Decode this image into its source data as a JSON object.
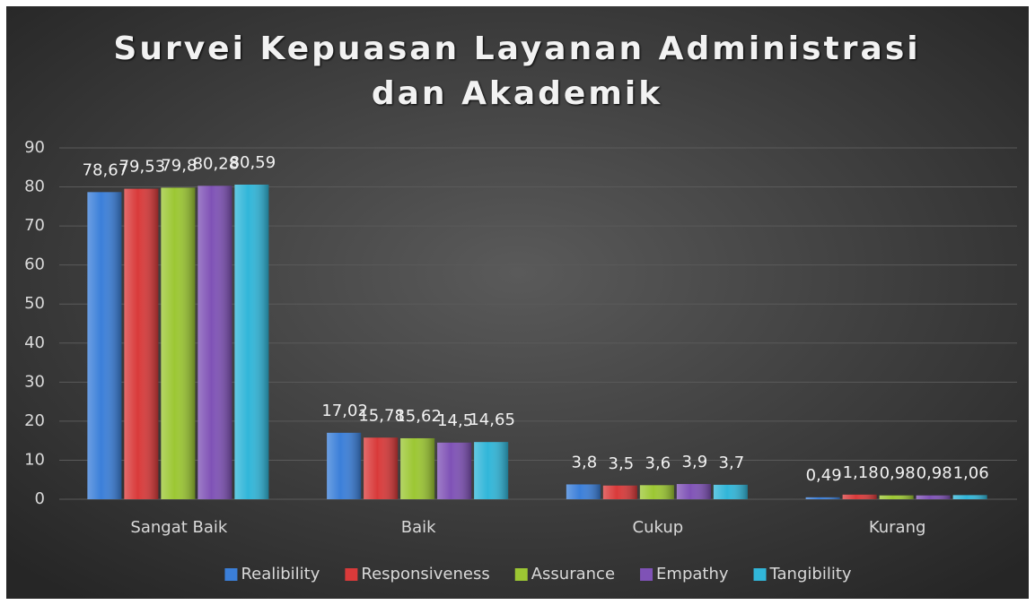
{
  "chart_data": {
    "type": "bar",
    "title": "Survei Kepuasan Layanan Administrasi dan Akademik",
    "categories": [
      "Sangat Baik",
      "Baik",
      "Cukup",
      "Kurang"
    ],
    "series": [
      {
        "name": "Realibility",
        "color": "#3b7fd9",
        "values": [
          78.67,
          17.02,
          3.8,
          0.49
        ],
        "value_labels": [
          "78,67",
          "17,02",
          "3,8",
          "0,49"
        ]
      },
      {
        "name": "Responsiveness",
        "color": "#d93a3a",
        "values": [
          79.53,
          15.78,
          3.5,
          1.18
        ],
        "value_labels": [
          "79,53",
          "15,78",
          "3,5",
          "1,18"
        ]
      },
      {
        "name": "Assurance",
        "color": "#9cc733",
        "values": [
          79.8,
          15.62,
          3.6,
          0.98
        ],
        "value_labels": [
          "79,8",
          "15,62",
          "3,6",
          "0,98"
        ]
      },
      {
        "name": "Empathy",
        "color": "#7f52b6",
        "values": [
          80.28,
          14.5,
          3.9,
          0.98
        ],
        "value_labels": [
          "80,28",
          "14,5",
          "3,9",
          "0,98"
        ]
      },
      {
        "name": "Tangibility",
        "color": "#31b6d9",
        "values": [
          80.59,
          14.65,
          3.7,
          1.06
        ],
        "value_labels": [
          "80,59",
          "14,65",
          "3,7",
          "1,06"
        ]
      }
    ],
    "ylim": [
      0,
      90
    ],
    "yticks": [
      0,
      10,
      20,
      30,
      40,
      50,
      60,
      70,
      80,
      90
    ],
    "grid": true,
    "legend": "bottom"
  }
}
